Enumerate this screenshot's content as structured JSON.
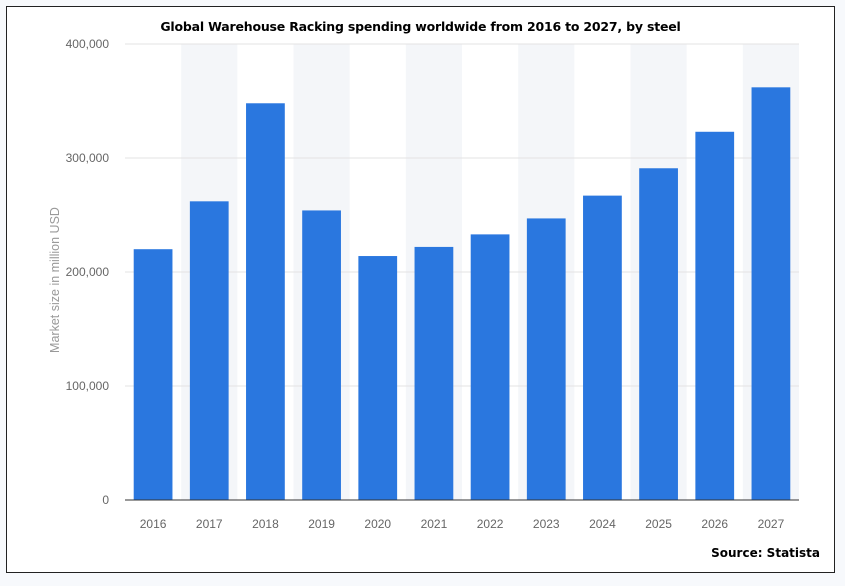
{
  "chart_data": {
    "type": "bar",
    "title": "Global Warehouse Racking spending worldwide from 2016 to 2027, by steel",
    "xlabel": "",
    "ylabel": "Market size in million USD",
    "categories": [
      "2016",
      "2017",
      "2018",
      "2019",
      "2020",
      "2021",
      "2022",
      "2023",
      "2024",
      "2025",
      "2026",
      "2027"
    ],
    "values": [
      220000,
      262000,
      348000,
      254000,
      214000,
      222000,
      233000,
      247000,
      267000,
      291000,
      323000,
      362000
    ],
    "ylim": [
      0,
      400000
    ],
    "yticks": [
      0,
      100000,
      200000,
      300000,
      400000
    ],
    "ytick_labels": [
      "0",
      "100,000",
      "200,000",
      "300,000",
      "400,000"
    ],
    "bar_color": "#2a77df",
    "band_color": "#f4f6f9",
    "grid": true,
    "legend": "none"
  },
  "source_label": "Source: Statista"
}
